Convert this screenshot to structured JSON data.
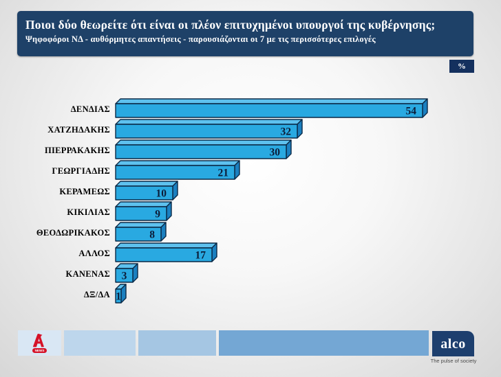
{
  "header": {
    "title": "Ποιοι δύο θεωρείτε ότι είναι οι πλέον επιτυχημένοι υπουργοί της κυβέρνησης;",
    "subtitle": "Ψηφοφόροι ΝΔ - αυθόρμητες απαντήσεις - παρουσιάζονται οι 7 με τις περισσότερες επιλογές"
  },
  "unit_badge": "%",
  "chart_data": {
    "type": "bar",
    "orientation": "horizontal",
    "categories": [
      "ΔΕΝΔΙΑΣ",
      "ΧΑΤΖΗΔΑΚΗΣ",
      "ΠΙΕΡΡΑΚΑΚΗΣ",
      "ΓΕΩΡΓΙΑΔΗΣ",
      "ΚΕΡΑΜΕΩΣ",
      "ΚΙΚΙΛΙΑΣ",
      "ΘΕΟΔΩΡΙΚΑΚΟΣ",
      "ΑΛΛΟΣ",
      "ΚΑΝΕΝΑΣ",
      "ΔΞ/ΔΑ"
    ],
    "values": [
      54,
      32,
      30,
      21,
      10,
      9,
      8,
      17,
      3,
      1
    ],
    "unit": "%",
    "title": "Ποιοι δύο θεωρείτε ότι είναι οι πλέον επιτυχημένοι υπουργοί της κυβέρνησης;",
    "subtitle": "Ψηφοφόροι ΝΔ - αυθόρμητες απαντήσεις - παρουσιάζονται οι 7 με τις περισσότερες επιλογές",
    "value_labels": "inside-end",
    "xlim": [
      0,
      60
    ],
    "grid": false,
    "legend": "none",
    "bar_style": "3d"
  },
  "colors": {
    "title_bg": "#1e4168",
    "badge_bg": "#14305e",
    "bar_face": "#29a9e1",
    "bar_top": "#5ec1ee",
    "bar_side": "#1b80c0",
    "bar_outline": "#0a2946",
    "value_text": "#0c1c38",
    "alpha_red": "#d51228",
    "alco_navy": "#1d3f6e"
  },
  "footer": {
    "alpha_news_label": "NEWS",
    "alco_logo": "alco",
    "alco_tagline": "The pulse of society"
  }
}
